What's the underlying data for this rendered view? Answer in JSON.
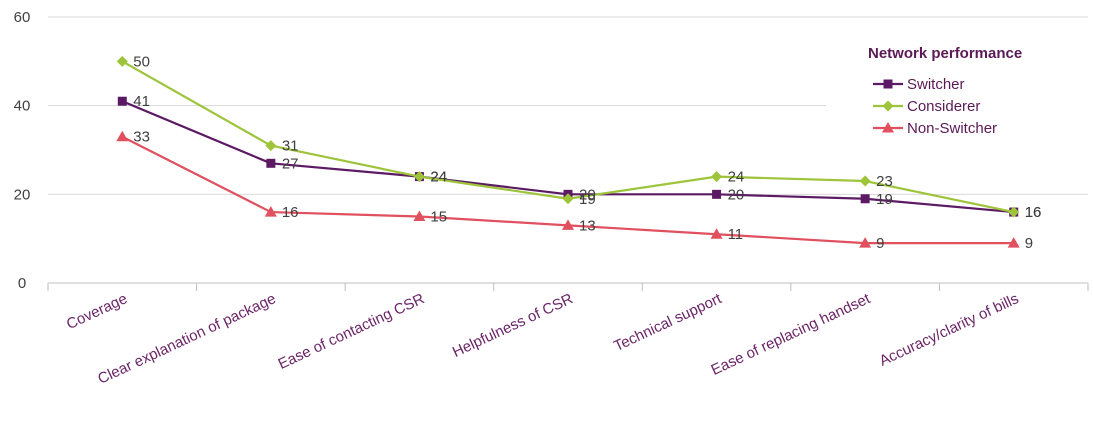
{
  "chart_data": {
    "type": "line",
    "categories": [
      "Coverage",
      "Clear explanation of package",
      "Ease of contacting CSR",
      "Helpfulness of CSR",
      "Technical support",
      "Ease of replacing handset",
      "Accuracy/clarity of bills"
    ],
    "series": [
      {
        "name": "Switcher",
        "values": [
          41,
          27,
          24,
          20,
          20,
          19,
          16
        ],
        "color": "#5b1a63",
        "marker": "square"
      },
      {
        "name": "Considerer",
        "values": [
          50,
          31,
          24,
          19,
          24,
          23,
          16
        ],
        "color": "#9dc43a",
        "marker": "diamond"
      },
      {
        "name": "Non-Switcher",
        "values": [
          33,
          16,
          15,
          13,
          11,
          9,
          9
        ],
        "color": "#e0505e",
        "marker": "triangle"
      }
    ],
    "ylim": [
      0,
      60
    ],
    "yticks": [
      0,
      20,
      40,
      60
    ],
    "grid": true,
    "legend": {
      "title": "Network performance",
      "position": "right"
    },
    "title": "",
    "xlabel": "",
    "ylabel": ""
  }
}
